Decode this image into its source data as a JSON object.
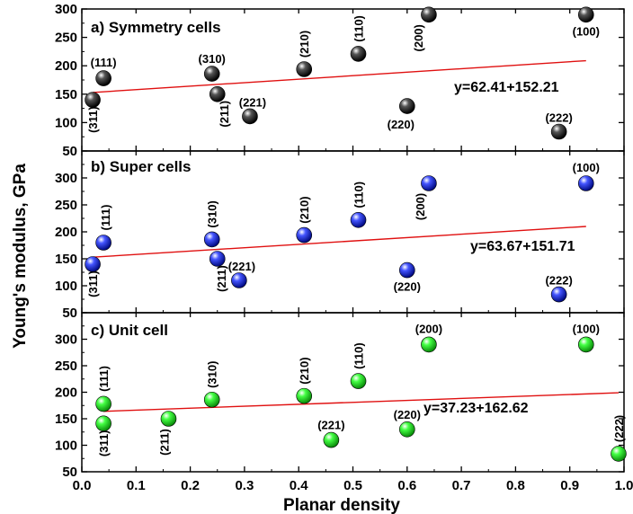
{
  "chart_data": {
    "type": "scatter",
    "xlabel": "Planar density",
    "ylabel": "Young's modulus, GPa",
    "xlim": [
      0.0,
      1.0
    ],
    "x_ticks": [
      "0.0",
      "0.1",
      "0.2",
      "0.3",
      "0.4",
      "0.5",
      "0.6",
      "0.7",
      "0.8",
      "0.9",
      "1.0"
    ],
    "panels": [
      {
        "title": "a) Symmetry cells",
        "ylim": [
          50,
          300
        ],
        "y_ticks": [
          "50",
          "100",
          "150",
          "200",
          "250",
          "300"
        ],
        "color": "#1a1a1a",
        "fit_equation": "y=62.41+152.21",
        "fit_line": {
          "x": [
            0.02,
            0.93
          ],
          "y": [
            153,
            209
          ]
        },
        "points": [
          {
            "label": "(311)",
            "x": 0.02,
            "y": 140
          },
          {
            "label": "(111)",
            "x": 0.04,
            "y": 178
          },
          {
            "label": "(310)",
            "x": 0.24,
            "y": 186
          },
          {
            "label": "(211)",
            "x": 0.25,
            "y": 150
          },
          {
            "label": "(221)",
            "x": 0.31,
            "y": 111
          },
          {
            "label": "(210)",
            "x": 0.41,
            "y": 194
          },
          {
            "label": "(110)",
            "x": 0.51,
            "y": 221
          },
          {
            "label": "(220)",
            "x": 0.6,
            "y": 129
          },
          {
            "label": "(200)",
            "x": 0.64,
            "y": 290
          },
          {
            "label": "(222)",
            "x": 0.88,
            "y": 84
          },
          {
            "label": "(100)",
            "x": 0.93,
            "y": 290
          }
        ]
      },
      {
        "title": "b) Super cells",
        "ylim": [
          50,
          350
        ],
        "y_ticks": [
          "50",
          "100",
          "150",
          "200",
          "250",
          "300"
        ],
        "color": "#2233cc",
        "fit_equation": "y=63.67+151.71",
        "fit_line": {
          "x": [
            0.02,
            0.93
          ],
          "y": [
            153,
            210
          ]
        },
        "points": [
          {
            "label": "(311)",
            "x": 0.02,
            "y": 140
          },
          {
            "label": "(111)",
            "x": 0.04,
            "y": 180
          },
          {
            "label": "(310)",
            "x": 0.24,
            "y": 186
          },
          {
            "label": "(211)",
            "x": 0.25,
            "y": 150
          },
          {
            "label": "(221)",
            "x": 0.29,
            "y": 110
          },
          {
            "label": "(210)",
            "x": 0.41,
            "y": 194
          },
          {
            "label": "(110)",
            "x": 0.51,
            "y": 222
          },
          {
            "label": "(220)",
            "x": 0.6,
            "y": 129
          },
          {
            "label": "(200)",
            "x": 0.64,
            "y": 290
          },
          {
            "label": "(222)",
            "x": 0.88,
            "y": 84
          },
          {
            "label": "(100)",
            "x": 0.93,
            "y": 290
          }
        ]
      },
      {
        "title": "c) Unit cell",
        "ylim": [
          50,
          350
        ],
        "y_ticks": [
          "50",
          "100",
          "150",
          "200",
          "250",
          "300"
        ],
        "color": "#22cc22",
        "fit_equation": "y=37.23+162.62",
        "fit_line": {
          "x": [
            0.04,
            0.99
          ],
          "y": [
            164,
            199
          ]
        },
        "points": [
          {
            "label": "(311)",
            "x": 0.04,
            "y": 141
          },
          {
            "label": "(111)",
            "x": 0.04,
            "y": 178
          },
          {
            "label": "(211)",
            "x": 0.16,
            "y": 150
          },
          {
            "label": "(310)",
            "x": 0.24,
            "y": 186
          },
          {
            "label": "(210)",
            "x": 0.41,
            "y": 193
          },
          {
            "label": "(221)",
            "x": 0.46,
            "y": 110
          },
          {
            "label": "(110)",
            "x": 0.51,
            "y": 221
          },
          {
            "label": "(220)",
            "x": 0.6,
            "y": 130
          },
          {
            "label": "(200)",
            "x": 0.64,
            "y": 290
          },
          {
            "label": "(100)",
            "x": 0.93,
            "y": 290
          },
          {
            "label": "(222)",
            "x": 0.99,
            "y": 84
          }
        ]
      }
    ]
  }
}
